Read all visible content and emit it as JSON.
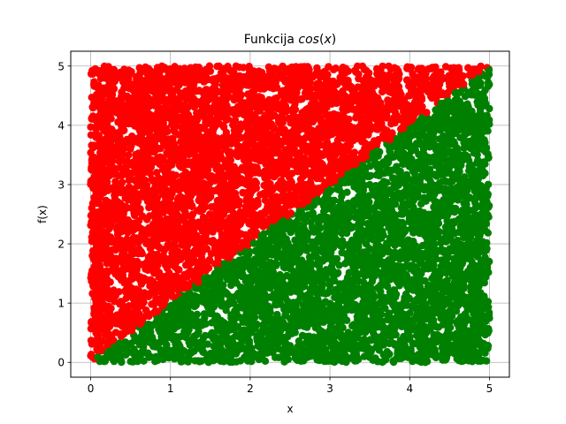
{
  "chart_data": {
    "type": "scatter",
    "title": {
      "prefix": "Funkcija ",
      "func": "cos",
      "open": "(",
      "arg": "x",
      "close": ")"
    },
    "xlabel": "x",
    "ylabel": "f(x)",
    "xlim": [
      -0.25,
      5.25
    ],
    "ylim": [
      -0.25,
      5.25
    ],
    "xticks": [
      0,
      1,
      2,
      3,
      4,
      5
    ],
    "yticks": [
      0,
      1,
      2,
      3,
      4,
      5
    ],
    "grid": true,
    "legend": "none",
    "boundary": {
      "description": "points above the line y = x are red, points on or below it are green",
      "slope": 1,
      "intercept": 0
    },
    "sample_region": {
      "x": [
        0,
        5
      ],
      "y": [
        0,
        5
      ]
    },
    "point_count": 10000,
    "series": [
      {
        "color": "#ff0000",
        "condition": "y > x"
      },
      {
        "color": "#008000",
        "condition": "y <= x"
      }
    ]
  }
}
